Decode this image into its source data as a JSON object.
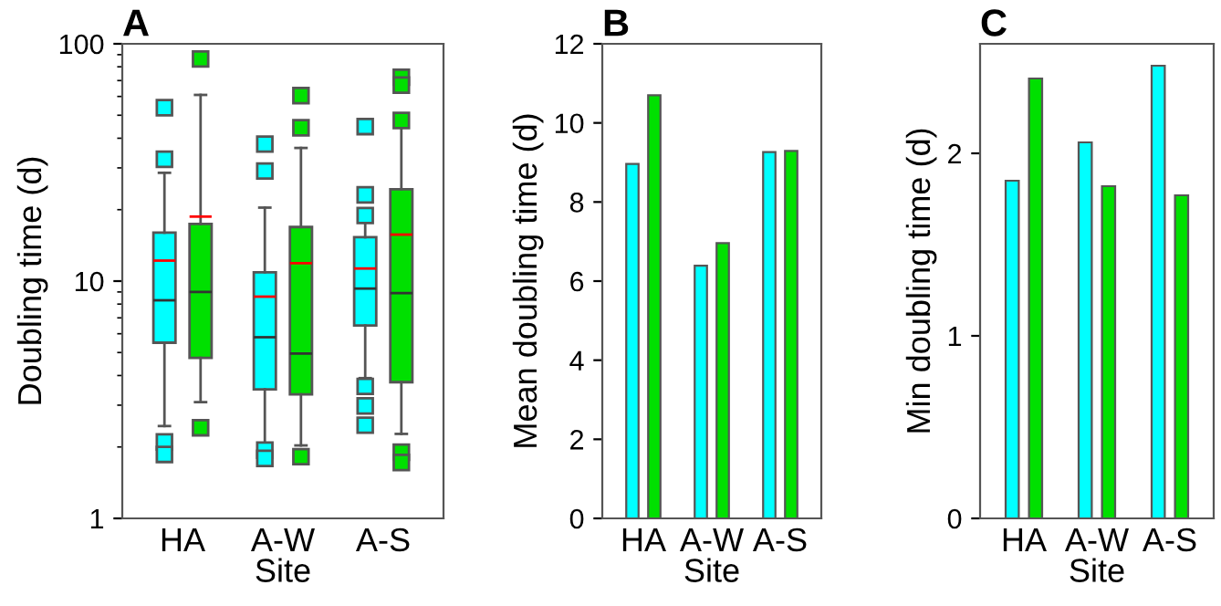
{
  "chart_data": [
    {
      "type": "box",
      "title": "A",
      "xlabel": "Site",
      "ylabel": "Doubling time (d)",
      "categories": [
        "HA",
        "A-W",
        "A-S"
      ],
      "log": "y",
      "ylim": [
        1,
        100
      ],
      "yticks": [
        1,
        10,
        100
      ],
      "grid": false,
      "marker": "square",
      "series": [
        {
          "color": "#00ffff",
          "boxes": [
            {
              "low": 2.45,
              "q1": 5.5,
              "median": 8.3,
              "q3": 16.0,
              "high": 28.6,
              "mean": 12.2,
              "outliers": [
                53.8,
                32.6,
                2.1,
                1.86
              ]
            },
            {
              "low": 2.03,
              "q1": 3.5,
              "median": 5.8,
              "q3": 10.9,
              "high": 20.4,
              "mean": 8.6,
              "outliers": [
                37.8,
                29.1,
                1.94,
                1.79
              ]
            },
            {
              "low": 3.9,
              "q1": 6.5,
              "median": 9.3,
              "q3": 15.3,
              "high": 18.0,
              "mean": 11.3,
              "outliers": [
                44.8,
                23.1,
                18.9,
                3.6,
                2.98,
                2.47
              ]
            }
          ]
        },
        {
          "color": "#00e000",
          "boxes": [
            {
              "low": 3.09,
              "q1": 4.75,
              "median": 9.0,
              "q3": 17.4,
              "high": 60.9,
              "mean": 18.7,
              "outliers": [
                86.3,
                2.41
              ]
            },
            {
              "low": 2.03,
              "q1": 3.33,
              "median": 4.95,
              "q3": 16.9,
              "high": 36.4,
              "mean": 11.9,
              "outliers": [
                60.5,
                44.3,
                1.82
              ]
            },
            {
              "low": 2.27,
              "q1": 3.75,
              "median": 8.9,
              "q3": 24.4,
              "high": 44.8,
              "mean": 15.7,
              "outliers": [
                72.3,
                67,
                47.5,
                1.9,
                1.72
              ]
            }
          ]
        }
      ]
    },
    {
      "type": "bar",
      "title": "B",
      "xlabel": "Site",
      "ylabel": "Mean doubling time (d)",
      "categories": [
        "HA",
        "A-W",
        "A-S"
      ],
      "ylim": [
        0,
        12
      ],
      "yticks": [
        0,
        2,
        4,
        6,
        8,
        10,
        12
      ],
      "grid": false,
      "series": [
        {
          "color": "#00ffff",
          "values": [
            8.96,
            6.39,
            9.26
          ]
        },
        {
          "color": "#00e000",
          "values": [
            10.7,
            6.96,
            9.29
          ]
        }
      ]
    },
    {
      "type": "bar",
      "title": "C",
      "xlabel": "Site",
      "ylabel": "Min doubling time (d)",
      "categories": [
        "HA",
        "A-W",
        "A-S"
      ],
      "ylim": [
        0,
        2.6
      ],
      "yticks": [
        0,
        1,
        2
      ],
      "grid": false,
      "series": [
        {
          "color": "#00ffff",
          "values": [
            1.85,
            2.06,
            2.48
          ]
        },
        {
          "color": "#00e000",
          "values": [
            2.41,
            1.82,
            1.77
          ]
        }
      ]
    }
  ]
}
